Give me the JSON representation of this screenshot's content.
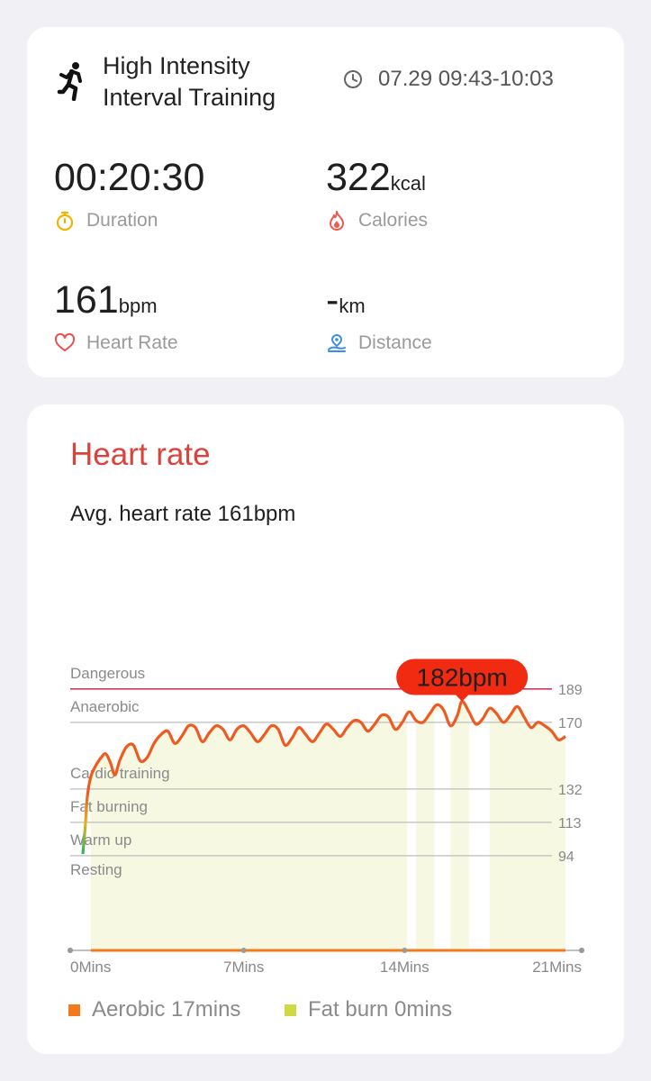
{
  "summary": {
    "activity_icon": "running-person-icon",
    "activity_name": "High Intensity Interval Training",
    "time_range": "07.29 09:43-10:03",
    "metrics": {
      "duration": {
        "value": "00:20:30",
        "unit": "",
        "label": "Duration",
        "icon": "stopwatch-icon",
        "color": "#f0b400"
      },
      "calories": {
        "value": "322",
        "unit": "kcal",
        "label": "Calories",
        "icon": "flame-icon",
        "color": "#ee5a4f"
      },
      "heart_rate": {
        "value": "161",
        "unit": "bpm",
        "label": "Heart Rate",
        "icon": "heart-icon",
        "color": "#e9504c"
      },
      "distance": {
        "value": "-",
        "unit": "km",
        "label": "Distance",
        "icon": "route-pin-icon",
        "color": "#3d8de0"
      }
    }
  },
  "heart_rate": {
    "title": "Heart rate",
    "avg_text": "Avg. heart rate 161bpm",
    "colors": {
      "title": "#d9433c",
      "line": "#ee5a1f",
      "danger": "#d2375c",
      "fill": "#f7f8e2",
      "aerobic": "#f27a1a",
      "fat_burn": "#cfd943"
    },
    "legend": [
      {
        "label": "Aerobic 17mins",
        "color": "#f27a1a"
      },
      {
        "label": "Fat burn 0mins",
        "color": "#cfd943"
      }
    ]
  },
  "chart_data": {
    "type": "line",
    "title": "Heart rate",
    "xlabel": "",
    "ylabel": "",
    "xlim": [
      0,
      21
    ],
    "ylim": [
      40,
      195
    ],
    "x_ticks": [
      "0Mins",
      "7Mins",
      "14Mins",
      "21Mins"
    ],
    "x_tick_values": [
      0,
      7,
      14,
      21
    ],
    "y_ticks": [
      189,
      170,
      132,
      113,
      94
    ],
    "zones": [
      {
        "name": "Dangerous",
        "min": 189
      },
      {
        "name": "Anaerobic",
        "min": 170
      },
      {
        "name": "Cardio training",
        "min": 132
      },
      {
        "name": "Fat burning",
        "min": 113
      },
      {
        "name": "Warm up",
        "min": 94
      },
      {
        "name": "Resting",
        "min": 0
      }
    ],
    "peak": {
      "x": 16.5,
      "y": 182,
      "label": "182bpm"
    },
    "series": [
      {
        "x": [
          0,
          0.1,
          0.2,
          0.35,
          0.55,
          0.8,
          1.0,
          1.2,
          1.4,
          1.6,
          1.9,
          2.2,
          2.5,
          2.8,
          3.1,
          3.4,
          3.7,
          4.0,
          4.3,
          4.6,
          4.9,
          5.2,
          5.5,
          5.8,
          6.1,
          6.4,
          6.7,
          7.0,
          7.3,
          7.6,
          7.9,
          8.2,
          8.5,
          8.8,
          9.1,
          9.4,
          9.7,
          10.0,
          10.3,
          10.6,
          10.9,
          11.2,
          11.5,
          11.8,
          12.1,
          12.4,
          12.7,
          13.0,
          13.3,
          13.6,
          13.9,
          14.2,
          14.5,
          14.8,
          15.1,
          15.4,
          15.7,
          16.0,
          16.3,
          16.5,
          16.8,
          17.1,
          17.4,
          17.7,
          18.0,
          18.3,
          18.6,
          18.9,
          19.2,
          19.5,
          19.8,
          20.1,
          20.4,
          20.7,
          21.0
        ],
        "y": [
          95,
          110,
          128,
          139,
          145,
          150,
          152,
          147,
          140,
          148,
          156,
          157,
          148,
          150,
          158,
          163,
          165,
          158,
          162,
          168,
          167,
          159,
          164,
          168,
          166,
          160,
          166,
          168,
          164,
          159,
          163,
          168,
          166,
          157,
          161,
          167,
          163,
          159,
          164,
          169,
          166,
          162,
          167,
          171,
          170,
          165,
          169,
          174,
          173,
          166,
          170,
          176,
          171,
          170,
          175,
          180,
          177,
          168,
          174,
          182,
          176,
          169,
          172,
          178,
          175,
          170,
          174,
          179,
          173,
          167,
          170,
          168,
          165,
          160,
          162
        ]
      }
    ],
    "highlight_bands": [
      [
        14.1,
        14.5
      ],
      [
        15.3,
        16.0
      ],
      [
        16.8,
        17.7
      ]
    ]
  }
}
